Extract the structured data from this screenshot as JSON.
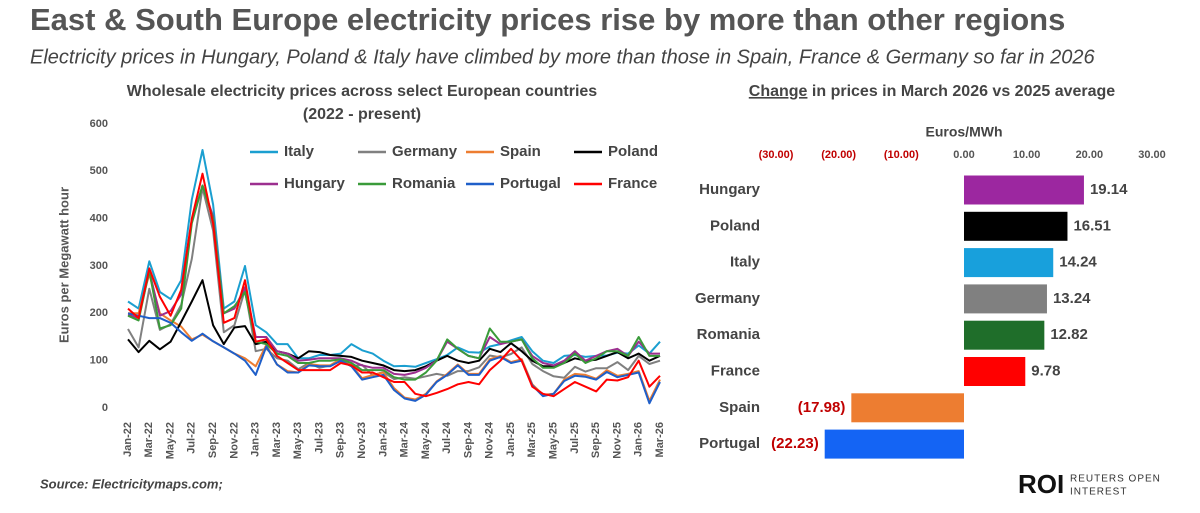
{
  "title": "East & South Europe electricity prices rise by more than other regions",
  "subtitle": "Electricity prices in Hungary, Poland & Italy have climbed by more than those in Spain, France & Germany so far in 2026",
  "source": "Source:  Electricitymaps.com;",
  "branding": {
    "logo": "ROI",
    "line1": "REUTERS OPEN",
    "line2": "INTEREST"
  },
  "chart_data": [
    {
      "type": "line",
      "title": [
        "Wholesale electricity prices across select European countries",
        "(2022 - present)"
      ],
      "y_label": "Euros per Megawatt hour",
      "categories": [
        "Jan-22",
        null,
        "Mar-22",
        null,
        "May-22",
        null,
        "Jul-22",
        null,
        "Sep-22",
        null,
        "Nov-22",
        null,
        "Jan-23",
        null,
        "Mar-23",
        null,
        "May-23",
        null,
        "Jul-23",
        null,
        "Sep-23",
        null,
        "Nov-23",
        null,
        "Jan-24",
        null,
        "Mar-24",
        null,
        "May-24",
        null,
        "Jul-24",
        null,
        "Sep-24",
        null,
        "Nov-24",
        null,
        "Jan-25",
        null,
        "Mar-25",
        null,
        "May-25",
        null,
        "Jul-25",
        null,
        "Sep-25",
        null,
        "Nov-25",
        null,
        "Jan-26",
        null,
        "Mar-26"
      ],
      "ylim": [
        0,
        600
      ],
      "yticks": [
        0,
        100,
        200,
        300,
        400,
        500,
        600
      ],
      "grid": false,
      "legend": "top",
      "series": [
        {
          "name": "Italy",
          "color": "#1b9fd0",
          "values": [
            225,
            210,
            310,
            245,
            230,
            270,
            440,
            545,
            430,
            210,
            225,
            300,
            175,
            160,
            135,
            135,
            105,
            105,
            112,
            112,
            115,
            135,
            122,
            115,
            100,
            88,
            89,
            87,
            95,
            103,
            112,
            128,
            118,
            117,
            130,
            135,
            143,
            150,
            120,
            100,
            95,
            110,
            112,
            108,
            110,
            111,
            117,
            115,
            132,
            115,
            140
          ]
        },
        {
          "name": "Germany",
          "color": "#808080",
          "values": [
            167,
            128,
            252,
            165,
            177,
            218,
            315,
            465,
            375,
            160,
            175,
            250,
            120,
            125,
            105,
            100,
            82,
            95,
            85,
            90,
            100,
            88,
            91,
            69,
            76,
            61,
            65,
            62,
            67,
            72,
            68,
            78,
            78,
            86,
            111,
            107,
            114,
            128,
            93,
            78,
            67,
            64,
            87,
            77,
            84,
            84,
            97,
            80,
            110,
            93,
            100
          ]
        },
        {
          "name": "Spain",
          "color": "#ed7d31",
          "values": [
            200,
            200,
            283,
            200,
            185,
            172,
            145,
            155,
            141,
            128,
            115,
            105,
            88,
            133,
            92,
            78,
            75,
            93,
            90,
            90,
            104,
            90,
            63,
            70,
            75,
            42,
            22,
            18,
            30,
            56,
            72,
            92,
            72,
            72,
            103,
            110,
            97,
            103,
            50,
            28,
            30,
            60,
            72,
            70,
            62,
            80,
            68,
            72,
            78,
            15,
            60
          ]
        },
        {
          "name": "Poland",
          "color": "#000000",
          "values": [
            145,
            118,
            142,
            124,
            140,
            182,
            225,
            270,
            175,
            135,
            170,
            173,
            135,
            140,
            120,
            115,
            105,
            120,
            118,
            112,
            110,
            108,
            100,
            95,
            90,
            80,
            78,
            80,
            88,
            100,
            110,
            100,
            95,
            100,
            125,
            118,
            137,
            120,
            100,
            88,
            88,
            95,
            105,
            100,
            102,
            110,
            118,
            105,
            115,
            100,
            110
          ]
        },
        {
          "name": "Hungary",
          "color": "#9c2f8f",
          "values": [
            197,
            190,
            290,
            195,
            205,
            240,
            395,
            470,
            405,
            200,
            210,
            255,
            150,
            150,
            120,
            115,
            100,
            102,
            105,
            105,
            105,
            100,
            90,
            85,
            85,
            72,
            70,
            75,
            85,
            100,
            140,
            125,
            110,
            105,
            150,
            135,
            140,
            145,
            110,
            95,
            90,
            100,
            120,
            100,
            110,
            120,
            125,
            110,
            140,
            115,
            115
          ]
        },
        {
          "name": "Romania",
          "color": "#3a9b3a",
          "values": [
            195,
            185,
            290,
            168,
            175,
            210,
            390,
            470,
            400,
            200,
            215,
            245,
            140,
            135,
            115,
            110,
            95,
            95,
            100,
            100,
            103,
            95,
            80,
            80,
            80,
            65,
            60,
            60,
            75,
            100,
            145,
            125,
            110,
            105,
            168,
            140,
            140,
            145,
            105,
            85,
            85,
            95,
            115,
            95,
            105,
            120,
            120,
            110,
            150,
            110,
            110
          ]
        },
        {
          "name": "Portugal",
          "color": "#1f5fc9",
          "values": [
            200,
            195,
            190,
            190,
            180,
            160,
            142,
            157,
            141,
            128,
            115,
            100,
            70,
            130,
            92,
            75,
            75,
            90,
            88,
            88,
            100,
            88,
            60,
            65,
            70,
            38,
            20,
            15,
            28,
            55,
            70,
            90,
            70,
            70,
            100,
            108,
            95,
            100,
            48,
            25,
            30,
            57,
            68,
            66,
            60,
            76,
            65,
            70,
            75,
            10,
            55
          ]
        },
        {
          "name": "France",
          "color": "#ff0000",
          "values": [
            210,
            190,
            295,
            235,
            195,
            250,
            400,
            495,
            390,
            180,
            190,
            270,
            140,
            145,
            110,
            95,
            80,
            80,
            80,
            80,
            95,
            90,
            75,
            75,
            65,
            55,
            55,
            30,
            25,
            32,
            40,
            50,
            55,
            50,
            80,
            100,
            125,
            100,
            45,
            30,
            25,
            40,
            55,
            45,
            35,
            60,
            58,
            65,
            100,
            45,
            68
          ]
        }
      ]
    },
    {
      "type": "bar",
      "orientation": "horizontal",
      "title_emphasis": "Change",
      "title": "in prices in March 2026 vs 2025 average",
      "x_label": "Euros/MWh",
      "xlim": [
        -30,
        30
      ],
      "xticks": [
        {
          "value": -30,
          "label": "(30.00)"
        },
        {
          "value": -20,
          "label": "(20.00)"
        },
        {
          "value": -10,
          "label": "(10.00)"
        },
        {
          "value": 0,
          "label": "0.00"
        },
        {
          "value": 10,
          "label": "10.00"
        },
        {
          "value": 20,
          "label": "20.00"
        },
        {
          "value": 30,
          "label": "30.00"
        }
      ],
      "categories": [
        "Hungary",
        "Poland",
        "Italy",
        "Germany",
        "Romania",
        "France",
        "Spain",
        "Portugal"
      ],
      "values": [
        19.14,
        16.51,
        14.24,
        13.24,
        12.82,
        9.78,
        -17.98,
        -22.23
      ],
      "value_labels": [
        "19.14",
        "16.51",
        "14.24",
        "13.24",
        "12.82",
        "9.78",
        "(17.98)",
        "(22.23)"
      ],
      "colors": [
        "#9c27a0",
        "#000000",
        "#18a0dc",
        "#808080",
        "#1f6e2a",
        "#ff0000",
        "#ed7d31",
        "#1464f4"
      ],
      "negative_color": "#c00000"
    }
  ]
}
